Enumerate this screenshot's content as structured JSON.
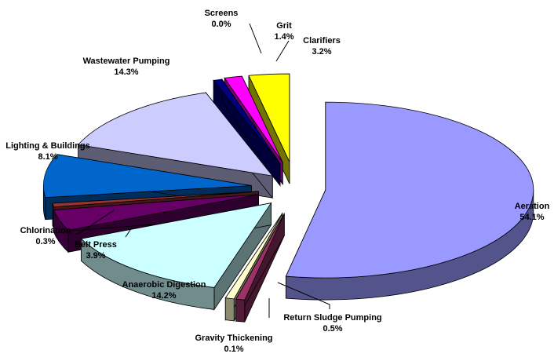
{
  "chart_data": {
    "type": "pie",
    "title": "",
    "exploded": true,
    "three_d": true,
    "slices": [
      {
        "label": "Aeration",
        "value": 54.1,
        "display": "54.1%",
        "color": "#9999ff"
      },
      {
        "label": "Return Sludge Pumping",
        "value": 0.5,
        "display": "0.5%",
        "color": "#993366"
      },
      {
        "label": "Gravity Thickening",
        "value": 0.1,
        "display": "0.1%",
        "color": "#ffffcc"
      },
      {
        "label": "Anaerobic Digestion",
        "value": 14.2,
        "display": "14.2%",
        "color": "#ccffff"
      },
      {
        "label": "Belt Press",
        "value": 3.9,
        "display": "3.9%",
        "color": "#660066"
      },
      {
        "label": "Chlorination",
        "value": 0.3,
        "display": "0.3%",
        "color": "#993333"
      },
      {
        "label": "Lighting & Buildings",
        "value": 8.1,
        "display": "8.1%",
        "color": "#0066cc"
      },
      {
        "label": "Wastewater Pumping",
        "value": 14.3,
        "display": "14.3%",
        "color": "#ccccff"
      },
      {
        "label": "Screens",
        "value": 0.0,
        "display": "0.0%",
        "color": "#000080"
      },
      {
        "label": "Grit",
        "value": 1.4,
        "display": "1.4%",
        "color": "#ff00ff"
      },
      {
        "label": "Clarifiers",
        "value": 3.2,
        "display": "3.2%",
        "color": "#ffff00"
      }
    ]
  }
}
